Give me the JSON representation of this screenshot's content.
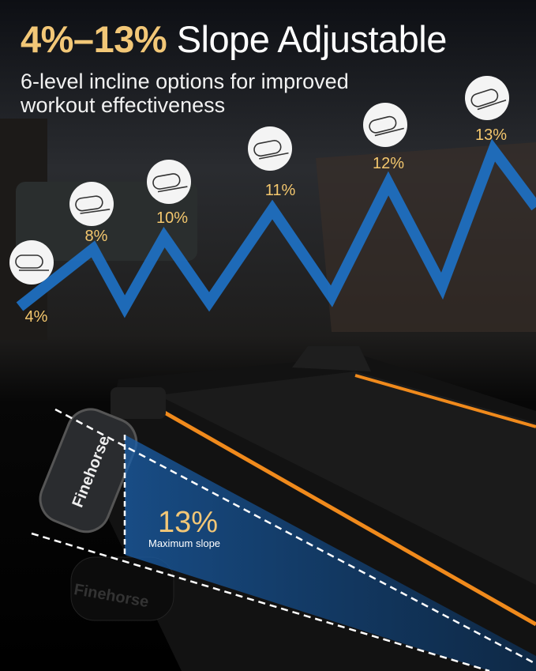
{
  "headline": {
    "range": "4%–13%",
    "text": "Slope Adjustable"
  },
  "subtitle": "6-level incline options for improved workout effectiveness",
  "levels": [
    "4%",
    "8%",
    "10%",
    "11%",
    "12%",
    "13%"
  ],
  "callout": {
    "value": "13%",
    "label": "Maximum slope"
  },
  "brand": "Finehorse",
  "colors": {
    "accent_gold": "#f2c777",
    "zigzag_blue": "#1f6fc0",
    "belt_orange": "#f08a1c",
    "slope_blue": "#0f4d8f"
  }
}
